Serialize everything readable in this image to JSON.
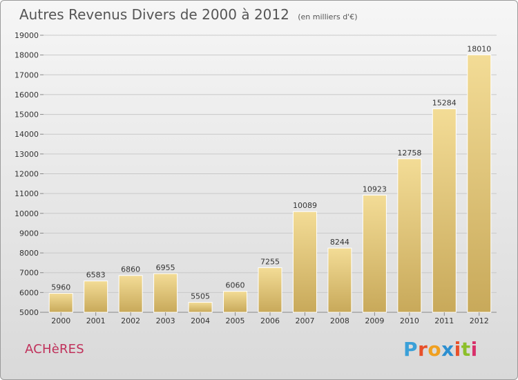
{
  "page": {
    "title": "Autres Revenus Divers de 2000 à 2012",
    "subtitle": "(en milliers d'€)",
    "commune": "ACHèRES",
    "brand": "Proxiti",
    "brand_colors": [
      "#3aa0d8",
      "#e8502a",
      "#f0a020",
      "#2c8fd0",
      "#e8502a",
      "#8cbf2a",
      "#d8306a"
    ]
  },
  "colors": {
    "bar_light": "#f3dc96",
    "bar_dark": "#c8a95a",
    "grid": "#c8c8c8",
    "axis_text": "#333333",
    "commune": "#c0305a"
  },
  "chart_data": {
    "type": "bar",
    "categories": [
      "2000",
      "2001",
      "2002",
      "2003",
      "2004",
      "2005",
      "2006",
      "2007",
      "2008",
      "2009",
      "2010",
      "2011",
      "2012"
    ],
    "values": [
      5960,
      6583,
      6860,
      6955,
      5505,
      6060,
      7255,
      10089,
      8244,
      10923,
      12758,
      15284,
      18010
    ],
    "ylim": [
      5000,
      19000
    ],
    "yticks": [
      5000,
      6000,
      7000,
      8000,
      9000,
      10000,
      11000,
      12000,
      13000,
      14000,
      15000,
      16000,
      17000,
      18000,
      19000
    ],
    "grid": true,
    "data_labels": true
  }
}
